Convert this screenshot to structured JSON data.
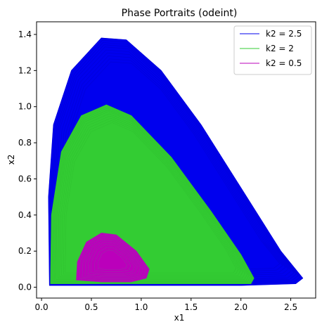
{
  "chart_data": {
    "type": "line",
    "title": "Phase Portraits (odeint)",
    "xlabel": "x1",
    "ylabel": "x2",
    "xlim": [
      -0.05,
      2.75
    ],
    "ylim": [
      -0.06,
      1.47
    ],
    "xticks": [
      0.0,
      0.5,
      1.0,
      1.5,
      2.0,
      2.5
    ],
    "xtick_labels": [
      "0.0",
      "0.5",
      "1.0",
      "1.5",
      "2.0",
      "2.5"
    ],
    "yticks": [
      0.0,
      0.2,
      0.4,
      0.6,
      0.8,
      1.0,
      1.2,
      1.4
    ],
    "ytick_labels": [
      "0.0",
      "0.2",
      "0.4",
      "0.6",
      "0.8",
      "1.0",
      "1.2",
      "1.4"
    ],
    "grid": false,
    "legend_position": "top-right",
    "series": [
      {
        "name": "k2 = 2.5",
        "label": "k2 = 2.5",
        "color": "#0000ee",
        "outline": [
          [
            0.08,
            0.01
          ],
          [
            0.07,
            0.5
          ],
          [
            0.12,
            0.9
          ],
          [
            0.3,
            1.2
          ],
          [
            0.6,
            1.38
          ],
          [
            0.85,
            1.37
          ],
          [
            1.2,
            1.2
          ],
          [
            1.6,
            0.9
          ],
          [
            2.0,
            0.55
          ],
          [
            2.4,
            0.2
          ],
          [
            2.62,
            0.05
          ],
          [
            2.55,
            0.02
          ],
          [
            2.0,
            0.01
          ],
          [
            1.0,
            0.01
          ],
          [
            0.3,
            0.01
          ]
        ]
      },
      {
        "name": "k2 = 2",
        "label": "k2 = 2",
        "color": "#33cc33",
        "outline": [
          [
            0.09,
            0.02
          ],
          [
            0.1,
            0.4
          ],
          [
            0.2,
            0.75
          ],
          [
            0.4,
            0.95
          ],
          [
            0.65,
            1.01
          ],
          [
            0.9,
            0.95
          ],
          [
            1.3,
            0.72
          ],
          [
            1.7,
            0.42
          ],
          [
            2.0,
            0.18
          ],
          [
            2.13,
            0.05
          ],
          [
            2.1,
            0.02
          ],
          [
            1.5,
            0.02
          ],
          [
            0.8,
            0.02
          ],
          [
            0.3,
            0.02
          ]
        ]
      },
      {
        "name": "k2 = 0.5",
        "label": "k2 = 0.5",
        "color": "#bb00bb",
        "outline": [
          [
            0.35,
            0.04
          ],
          [
            0.36,
            0.14
          ],
          [
            0.45,
            0.25
          ],
          [
            0.6,
            0.3
          ],
          [
            0.75,
            0.29
          ],
          [
            0.95,
            0.2
          ],
          [
            1.08,
            0.1
          ],
          [
            1.05,
            0.05
          ],
          [
            0.9,
            0.03
          ],
          [
            0.6,
            0.03
          ]
        ]
      }
    ]
  }
}
